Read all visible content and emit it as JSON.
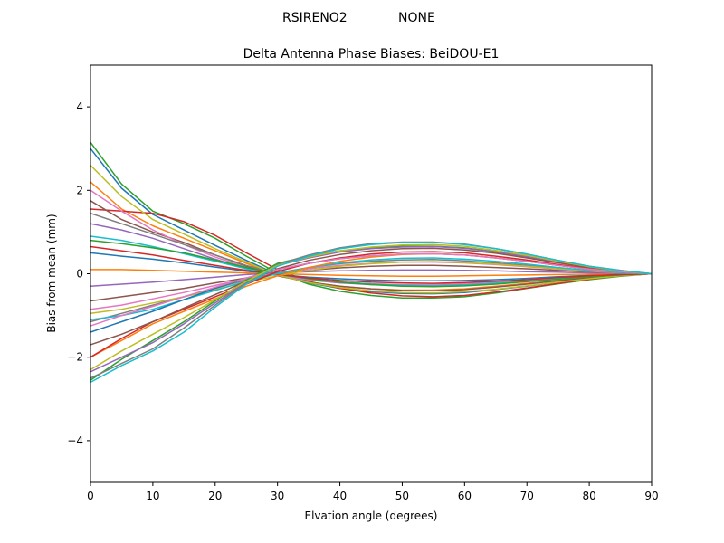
{
  "figure": {
    "suptitle_left": "RSIRENO2",
    "suptitle_right": "NONE"
  },
  "chart_data": {
    "type": "line",
    "title": "Delta Antenna Phase Biases: BeiDOU-E1",
    "xlabel": "Elvation angle (degrees)",
    "ylabel": "Bias from mean (mm)",
    "xlim": [
      0,
      90
    ],
    "ylim": [
      -5,
      5
    ],
    "xticks": [
      0,
      10,
      20,
      30,
      40,
      50,
      60,
      70,
      80,
      90
    ],
    "yticks": [
      -4,
      -2,
      0,
      2,
      4
    ],
    "ytick_labels": [
      "−4",
      "−2",
      "0",
      "2",
      "4"
    ],
    "grid": false,
    "legend": "none",
    "x": [
      0,
      5,
      10,
      15,
      20,
      25,
      30,
      35,
      40,
      45,
      50,
      55,
      60,
      65,
      70,
      75,
      80,
      85,
      90
    ],
    "series_count": 30,
    "colors": [
      "#1f77b4",
      "#ff7f0e",
      "#2ca02c",
      "#d62728",
      "#9467bd",
      "#8c564b",
      "#e377c2",
      "#7f7f7f",
      "#bcbd22",
      "#17becf"
    ],
    "series": [
      {
        "color": "#1f77b4",
        "values": [
          3.0,
          2.05,
          1.42,
          1.05,
          0.68,
          0.32,
          -0.02,
          -0.22,
          -0.35,
          -0.43,
          -0.47,
          -0.48,
          -0.45,
          -0.38,
          -0.3,
          -0.2,
          -0.12,
          -0.05,
          0.0
        ]
      },
      {
        "color": "#ff7f0e",
        "values": [
          2.2,
          1.55,
          1.15,
          0.85,
          0.55,
          0.25,
          -0.04,
          -0.2,
          -0.3,
          -0.36,
          -0.39,
          -0.39,
          -0.36,
          -0.3,
          -0.23,
          -0.16,
          -0.09,
          -0.04,
          0.0
        ]
      },
      {
        "color": "#2ca02c",
        "values": [
          3.15,
          2.15,
          1.5,
          1.2,
          0.85,
          0.42,
          0.02,
          -0.25,
          -0.42,
          -0.52,
          -0.58,
          -0.58,
          -0.55,
          -0.46,
          -0.35,
          -0.24,
          -0.14,
          -0.06,
          0.0
        ]
      },
      {
        "color": "#d62728",
        "values": [
          1.55,
          1.5,
          1.45,
          1.25,
          0.92,
          0.5,
          0.1,
          -0.18,
          -0.35,
          -0.46,
          -0.53,
          -0.55,
          -0.52,
          -0.44,
          -0.34,
          -0.23,
          -0.13,
          -0.05,
          0.0
        ]
      },
      {
        "color": "#9467bd",
        "values": [
          1.2,
          1.05,
          0.85,
          0.6,
          0.35,
          0.12,
          -0.05,
          -0.15,
          -0.22,
          -0.26,
          -0.28,
          -0.28,
          -0.26,
          -0.21,
          -0.16,
          -0.11,
          -0.06,
          -0.02,
          0.0
        ]
      },
      {
        "color": "#8c564b",
        "values": [
          1.75,
          1.3,
          1.0,
          0.75,
          0.45,
          0.18,
          -0.05,
          -0.2,
          -0.3,
          -0.36,
          -0.4,
          -0.41,
          -0.38,
          -0.32,
          -0.25,
          -0.17,
          -0.1,
          -0.04,
          0.0
        ]
      },
      {
        "color": "#e377c2",
        "values": [
          2.0,
          1.5,
          1.05,
          0.7,
          0.4,
          0.15,
          -0.04,
          -0.14,
          -0.2,
          -0.24,
          -0.26,
          -0.26,
          -0.24,
          -0.2,
          -0.15,
          -0.1,
          -0.06,
          -0.02,
          0.0
        ]
      },
      {
        "color": "#7f7f7f",
        "values": [
          1.45,
          1.2,
          0.95,
          0.7,
          0.45,
          0.2,
          0.0,
          -0.12,
          -0.2,
          -0.25,
          -0.28,
          -0.29,
          -0.27,
          -0.23,
          -0.18,
          -0.12,
          -0.07,
          -0.03,
          0.0
        ]
      },
      {
        "color": "#bcbd22",
        "values": [
          2.6,
          1.85,
          1.3,
          0.95,
          0.6,
          0.28,
          -0.03,
          -0.21,
          -0.33,
          -0.41,
          -0.45,
          -0.46,
          -0.43,
          -0.37,
          -0.29,
          -0.2,
          -0.12,
          -0.05,
          0.0
        ]
      },
      {
        "color": "#17becf",
        "values": [
          0.9,
          0.8,
          0.65,
          0.48,
          0.3,
          0.12,
          -0.02,
          -0.12,
          -0.2,
          -0.25,
          -0.28,
          -0.29,
          -0.27,
          -0.23,
          -0.18,
          -0.12,
          -0.07,
          -0.03,
          0.0
        ]
      },
      {
        "color": "#1f77b4",
        "values": [
          0.5,
          0.42,
          0.35,
          0.26,
          0.16,
          0.06,
          -0.02,
          -0.08,
          -0.12,
          -0.15,
          -0.17,
          -0.17,
          -0.16,
          -0.14,
          -0.11,
          -0.07,
          -0.04,
          -0.02,
          0.0
        ]
      },
      {
        "color": "#ff7f0e",
        "values": [
          0.1,
          0.1,
          0.08,
          0.06,
          0.04,
          0.02,
          0.0,
          -0.02,
          -0.04,
          -0.05,
          -0.06,
          -0.06,
          -0.05,
          -0.04,
          -0.03,
          -0.02,
          -0.01,
          0.0,
          0.0
        ]
      },
      {
        "color": "#2ca02c",
        "values": [
          0.8,
          0.72,
          0.62,
          0.5,
          0.33,
          0.15,
          0.0,
          -0.12,
          -0.2,
          -0.26,
          -0.3,
          -0.31,
          -0.29,
          -0.25,
          -0.19,
          -0.13,
          -0.07,
          -0.03,
          0.0
        ]
      },
      {
        "color": "#d62728",
        "values": [
          0.65,
          0.55,
          0.45,
          0.32,
          0.2,
          0.08,
          -0.02,
          -0.1,
          -0.16,
          -0.2,
          -0.22,
          -0.23,
          -0.21,
          -0.18,
          -0.14,
          -0.09,
          -0.05,
          -0.02,
          0.0
        ]
      },
      {
        "color": "#9467bd",
        "values": [
          -0.3,
          -0.25,
          -0.2,
          -0.14,
          -0.08,
          -0.02,
          0.02,
          0.05,
          0.07,
          0.08,
          0.09,
          0.09,
          0.08,
          0.07,
          0.05,
          0.04,
          0.02,
          0.01,
          0.0
        ]
      },
      {
        "color": "#8c564b",
        "values": [
          -0.65,
          -0.55,
          -0.45,
          -0.35,
          -0.22,
          -0.1,
          0.0,
          0.08,
          0.14,
          0.18,
          0.2,
          0.2,
          0.18,
          0.15,
          0.12,
          0.08,
          0.05,
          0.02,
          0.0
        ]
      },
      {
        "color": "#e377c2",
        "values": [
          -0.85,
          -0.75,
          -0.6,
          -0.45,
          -0.28,
          -0.12,
          0.02,
          0.12,
          0.2,
          0.25,
          0.28,
          0.28,
          0.26,
          0.22,
          0.17,
          0.11,
          0.06,
          0.02,
          0.0
        ]
      },
      {
        "color": "#7f7f7f",
        "values": [
          -1.15,
          -0.95,
          -0.75,
          -0.55,
          -0.35,
          -0.15,
          0.02,
          0.15,
          0.24,
          0.3,
          0.33,
          0.34,
          0.31,
          0.26,
          0.2,
          0.13,
          0.07,
          0.03,
          0.0
        ]
      },
      {
        "color": "#bcbd22",
        "values": [
          -0.95,
          -0.85,
          -0.7,
          -0.55,
          -0.38,
          -0.2,
          -0.05,
          0.08,
          0.18,
          0.24,
          0.28,
          0.29,
          0.27,
          0.23,
          0.18,
          0.12,
          0.07,
          0.03,
          0.0
        ]
      },
      {
        "color": "#17becf",
        "values": [
          -1.1,
          -1.0,
          -0.85,
          -0.62,
          -0.4,
          -0.18,
          0.0,
          0.15,
          0.26,
          0.33,
          0.37,
          0.38,
          0.35,
          0.3,
          0.23,
          0.15,
          0.08,
          0.03,
          0.0
        ]
      },
      {
        "color": "#1f77b4",
        "values": [
          -1.4,
          -1.15,
          -0.9,
          -0.62,
          -0.35,
          -0.1,
          0.1,
          0.25,
          0.36,
          0.43,
          0.47,
          0.48,
          0.45,
          0.38,
          0.3,
          0.2,
          0.11,
          0.05,
          0.0
        ]
      },
      {
        "color": "#ff7f0e",
        "values": [
          -2.0,
          -1.6,
          -1.2,
          -0.9,
          -0.6,
          -0.3,
          -0.05,
          0.15,
          0.3,
          0.4,
          0.46,
          0.48,
          0.45,
          0.38,
          0.3,
          0.2,
          0.11,
          0.05,
          0.0
        ]
      },
      {
        "color": "#2ca02c",
        "values": [
          -2.55,
          -2.05,
          -1.6,
          -1.15,
          -0.65,
          -0.15,
          0.25,
          0.42,
          0.55,
          0.62,
          0.66,
          0.66,
          0.62,
          0.53,
          0.41,
          0.28,
          0.16,
          0.07,
          0.0
        ]
      },
      {
        "color": "#d62728",
        "values": [
          -2.0,
          -1.55,
          -1.15,
          -0.85,
          -0.55,
          -0.25,
          0.05,
          0.25,
          0.38,
          0.47,
          0.52,
          0.53,
          0.5,
          0.42,
          0.33,
          0.22,
          0.13,
          0.05,
          0.0
        ]
      },
      {
        "color": "#9467bd",
        "values": [
          -2.35,
          -2.0,
          -1.65,
          -1.2,
          -0.7,
          -0.2,
          0.2,
          0.38,
          0.52,
          0.6,
          0.64,
          0.65,
          0.61,
          0.52,
          0.41,
          0.28,
          0.16,
          0.07,
          0.0
        ]
      },
      {
        "color": "#8c564b",
        "values": [
          -1.7,
          -1.45,
          -1.15,
          -0.82,
          -0.5,
          -0.18,
          0.12,
          0.32,
          0.46,
          0.55,
          0.6,
          0.61,
          0.57,
          0.49,
          0.38,
          0.26,
          0.15,
          0.06,
          0.0
        ]
      },
      {
        "color": "#e377c2",
        "values": [
          -1.25,
          -1.0,
          -0.78,
          -0.55,
          -0.32,
          -0.1,
          0.1,
          0.25,
          0.36,
          0.43,
          0.47,
          0.48,
          0.45,
          0.38,
          0.3,
          0.2,
          0.11,
          0.05,
          0.0
        ]
      },
      {
        "color": "#7f7f7f",
        "values": [
          -2.5,
          -2.15,
          -1.8,
          -1.3,
          -0.75,
          -0.22,
          0.22,
          0.45,
          0.62,
          0.72,
          0.76,
          0.76,
          0.71,
          0.6,
          0.47,
          0.32,
          0.18,
          0.08,
          0.0
        ]
      },
      {
        "color": "#bcbd22",
        "values": [
          -2.3,
          -1.85,
          -1.45,
          -1.05,
          -0.62,
          -0.18,
          0.2,
          0.4,
          0.55,
          0.64,
          0.69,
          0.7,
          0.66,
          0.56,
          0.44,
          0.3,
          0.17,
          0.07,
          0.0
        ]
      },
      {
        "color": "#17becf",
        "values": [
          -2.6,
          -2.2,
          -1.85,
          -1.4,
          -0.8,
          -0.25,
          0.18,
          0.42,
          0.6,
          0.7,
          0.75,
          0.75,
          0.7,
          0.6,
          0.47,
          0.32,
          0.18,
          0.08,
          0.0
        ]
      }
    ]
  }
}
